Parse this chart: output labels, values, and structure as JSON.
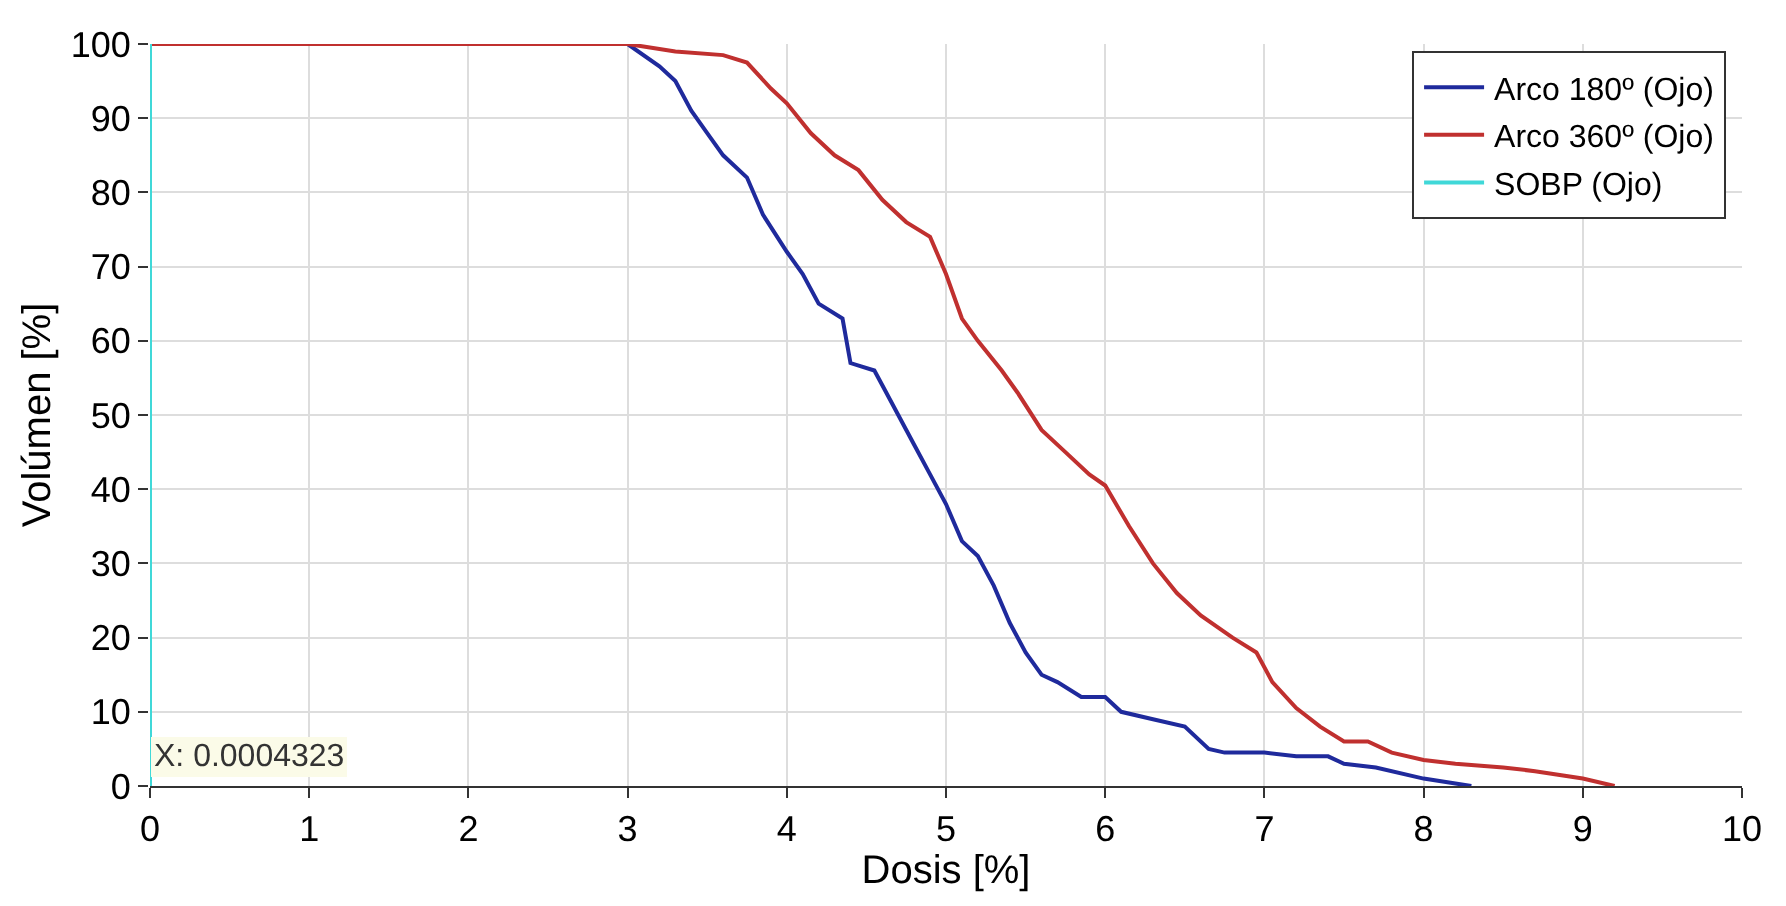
{
  "chart_data": {
    "type": "line",
    "xlabel": "Dosis [%]",
    "ylabel": "Volúmen [%]",
    "xlim": [
      0,
      10
    ],
    "xticks": [
      0,
      1,
      2,
      3,
      4,
      5,
      6,
      7,
      8,
      9,
      10
    ],
    "ylim": [
      0,
      100
    ],
    "yticks": [
      0,
      10,
      20,
      30,
      40,
      50,
      60,
      70,
      80,
      90,
      100
    ],
    "grid": true,
    "legend": "top right",
    "marker": "none",
    "line_style": "solid",
    "annotations": [
      {
        "text": "X: 0.0004323",
        "x": 0.0004323,
        "y": 0
      }
    ],
    "series": [
      {
        "name": "Arco 180º (Ojo)",
        "color": "#1f2a9c",
        "x": [
          0,
          2.5,
          3,
          3.2,
          3.3,
          3.4,
          3.5,
          3.6,
          3.75,
          3.85,
          4,
          4.1,
          4.2,
          4.35,
          4.4,
          4.55,
          4.6,
          4.7,
          4.8,
          4.9,
          5,
          5.1,
          5.2,
          5.3,
          5.4,
          5.5,
          5.6,
          5.7,
          5.85,
          6.0,
          6.1,
          6.3,
          6.5,
          6.65,
          6.75,
          7,
          7.2,
          7.4,
          7.5,
          7.7,
          8,
          8.3
        ],
        "values": [
          100,
          100,
          100,
          97,
          95,
          91,
          88,
          85,
          82,
          77,
          72,
          69,
          65,
          63,
          57,
          56,
          54,
          50,
          46,
          42,
          38,
          33,
          31,
          27,
          22,
          18,
          15,
          14,
          12,
          12,
          10,
          9,
          8,
          5,
          4.5,
          4.5,
          4,
          4,
          3,
          2.5,
          1,
          0
        ]
      },
      {
        "name": "Arco 360º (Ojo)",
        "color": "#c0302f",
        "x": [
          0,
          2.3,
          3,
          3.3,
          3.6,
          3.75,
          3.9,
          4,
          4.15,
          4.3,
          4.45,
          4.6,
          4.75,
          4.9,
          5,
          5.1,
          5.2,
          5.35,
          5.45,
          5.6,
          5.75,
          5.9,
          6.0,
          6.15,
          6.3,
          6.45,
          6.6,
          6.8,
          6.95,
          7.05,
          7.2,
          7.35,
          7.5,
          7.65,
          7.8,
          8,
          8.2,
          8.5,
          8.7,
          9,
          9.2
        ],
        "values": [
          100,
          100,
          100,
          99,
          98.5,
          97.5,
          94,
          92,
          88,
          85,
          83,
          79,
          76,
          74,
          69,
          63,
          60,
          56,
          53,
          48,
          45,
          42,
          40.5,
          35,
          30,
          26,
          23,
          20,
          18,
          14,
          10.5,
          8,
          6,
          6,
          4.5,
          3.5,
          3,
          2.5,
          2,
          1,
          0
        ]
      },
      {
        "name": "SOBP (Ojo)",
        "color": "#40d8d8",
        "x": [
          0,
          0,
          0,
          0,
          0,
          0,
          0,
          0,
          0,
          0,
          0
        ],
        "values": [
          0,
          10,
          20,
          30,
          40,
          50,
          60,
          70,
          80,
          90,
          100
        ]
      }
    ]
  }
}
